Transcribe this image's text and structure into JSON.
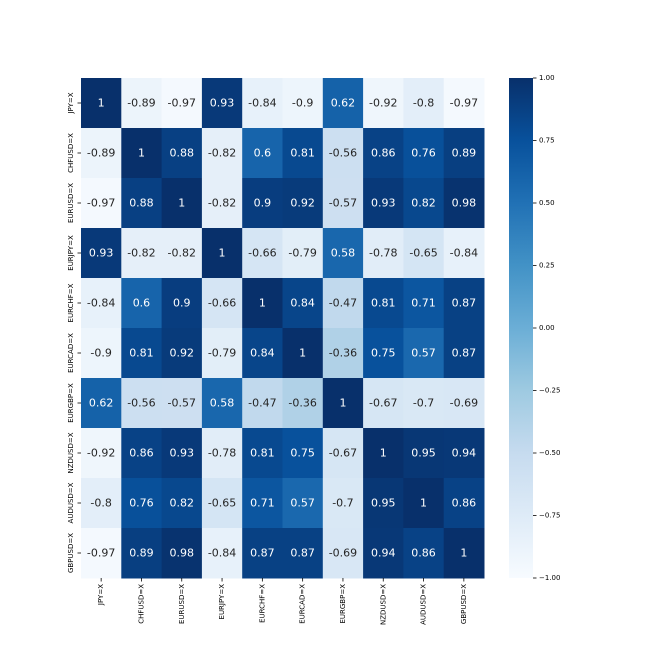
{
  "chart_data": {
    "type": "heatmap",
    "title": "",
    "xlabel": "",
    "ylabel": "",
    "rows": [
      "JPY=X",
      "CHFUSD=X",
      "EURUSD=X",
      "EURJPY=X",
      "EURCHF=X",
      "EURCAD=X",
      "EURGBP=X",
      "NZDUSD=X",
      "AUDUSD=X",
      "GBPUSD=X"
    ],
    "columns": [
      "JPY=X",
      "CHFUSD=X",
      "EURUSD=X",
      "EURJPY=X",
      "EURCHF=X",
      "EURCAD=X",
      "EURGBP=X",
      "NZDUSD=X",
      "AUDUSD=X",
      "GBPUSD=X"
    ],
    "values": [
      [
        1,
        -0.89,
        -0.97,
        0.93,
        -0.84,
        -0.9,
        0.62,
        -0.92,
        -0.8,
        -0.97
      ],
      [
        -0.89,
        1,
        0.88,
        -0.82,
        0.6,
        0.81,
        -0.56,
        0.86,
        0.76,
        0.89
      ],
      [
        -0.97,
        0.88,
        1,
        -0.82,
        0.9,
        0.92,
        -0.57,
        0.93,
        0.82,
        0.98
      ],
      [
        0.93,
        -0.82,
        -0.82,
        1,
        -0.66,
        -0.79,
        0.58,
        -0.78,
        -0.65,
        -0.84
      ],
      [
        -0.84,
        0.6,
        0.9,
        -0.66,
        1,
        0.84,
        -0.47,
        0.81,
        0.71,
        0.87
      ],
      [
        -0.9,
        0.81,
        0.92,
        -0.79,
        0.84,
        1,
        -0.36,
        0.75,
        0.57,
        0.87
      ],
      [
        0.62,
        -0.56,
        -0.57,
        0.58,
        -0.47,
        -0.36,
        1,
        -0.67,
        -0.7,
        -0.69
      ],
      [
        -0.92,
        0.86,
        0.93,
        -0.78,
        0.81,
        0.75,
        -0.67,
        1,
        0.95,
        0.94
      ],
      [
        -0.8,
        0.76,
        0.82,
        -0.65,
        0.71,
        0.57,
        -0.7,
        0.95,
        1,
        0.86
      ],
      [
        -0.97,
        0.89,
        0.98,
        -0.84,
        0.87,
        0.87,
        -0.69,
        0.94,
        0.86,
        1
      ]
    ],
    "colormap": "Blues",
    "vmin": -1.0,
    "vmax": 1.0,
    "colorbar_ticks": [
      "1.00",
      "0.75",
      "0.50",
      "0.25",
      "0.00",
      "−0.25",
      "−0.50",
      "−0.75",
      "−1.00"
    ],
    "colorbar_tick_values": [
      1.0,
      0.75,
      0.5,
      0.25,
      0.0,
      -0.25,
      -0.5,
      -0.75,
      -1.0
    ],
    "annotations": true,
    "grid": false,
    "legend": "colorbar-right"
  }
}
